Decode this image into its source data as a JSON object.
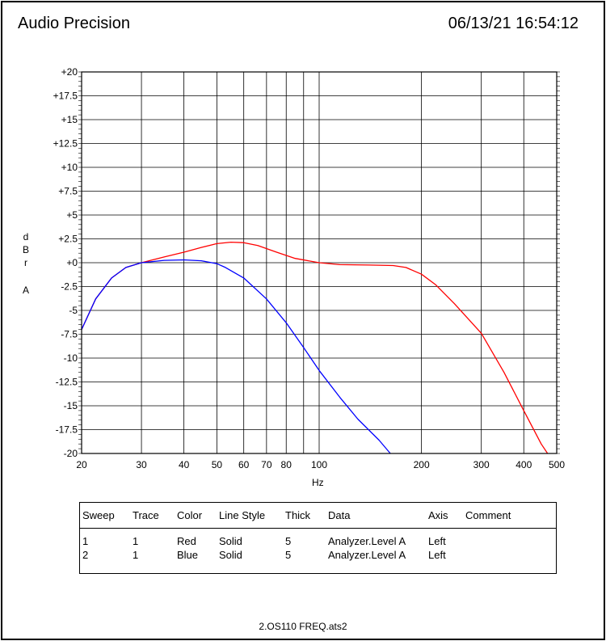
{
  "header": {
    "title": "Audio Precision",
    "datetime": "06/13/21 16:54:12"
  },
  "chart_data": {
    "type": "line",
    "x_scale": "log",
    "xlim": [
      20,
      500
    ],
    "ylim": [
      -20,
      20
    ],
    "xlabel": "Hz",
    "ylabel": [
      "d",
      "B",
      "r",
      "A"
    ],
    "grid": true,
    "x_ticks": [
      {
        "v": 20,
        "label": "20"
      },
      {
        "v": 30,
        "label": "30"
      },
      {
        "v": 40,
        "label": "40"
      },
      {
        "v": 50,
        "label": "50"
      },
      {
        "v": 60,
        "label": "60"
      },
      {
        "v": 70,
        "label": "70"
      },
      {
        "v": 80,
        "label": "80"
      },
      {
        "v": 100,
        "label": "100"
      },
      {
        "v": 200,
        "label": "200"
      },
      {
        "v": 300,
        "label": "300"
      },
      {
        "v": 400,
        "label": "400"
      },
      {
        "v": 500,
        "label": "500"
      }
    ],
    "y_ticks": [
      {
        "v": 20,
        "label": "+20"
      },
      {
        "v": 17.5,
        "label": "+17.5"
      },
      {
        "v": 15,
        "label": "+15"
      },
      {
        "v": 12.5,
        "label": "+12.5"
      },
      {
        "v": 10,
        "label": "+10"
      },
      {
        "v": 7.5,
        "label": "+7.5"
      },
      {
        "v": 5,
        "label": "+5"
      },
      {
        "v": 2.5,
        "label": "+2.5"
      },
      {
        "v": 0,
        "label": "+0"
      },
      {
        "v": -2.5,
        "label": "-2.5"
      },
      {
        "v": -5,
        "label": "-5"
      },
      {
        "v": -7.5,
        "label": "-7.5"
      },
      {
        "v": -10,
        "label": "-10"
      },
      {
        "v": -12.5,
        "label": "-12.5"
      },
      {
        "v": -15,
        "label": "-15"
      },
      {
        "v": -17.5,
        "label": "-17.5"
      },
      {
        "v": -20,
        "label": "-20"
      }
    ],
    "x_grid_minor": [
      90
    ],
    "series": [
      {
        "color": "#ff0000",
        "points": [
          [
            20,
            -7
          ],
          [
            22,
            -3.8
          ],
          [
            24.5,
            -1.6
          ],
          [
            27,
            -0.5
          ],
          [
            30,
            0
          ],
          [
            35,
            0.6
          ],
          [
            40,
            1.1
          ],
          [
            45,
            1.6
          ],
          [
            50,
            2.0
          ],
          [
            55,
            2.15
          ],
          [
            60,
            2.1
          ],
          [
            66,
            1.8
          ],
          [
            75,
            1.1
          ],
          [
            85,
            0.45
          ],
          [
            100,
            0
          ],
          [
            115,
            -0.2
          ],
          [
            140,
            -0.25
          ],
          [
            165,
            -0.3
          ],
          [
            180,
            -0.5
          ],
          [
            200,
            -1.2
          ],
          [
            220,
            -2.3
          ],
          [
            250,
            -4.3
          ],
          [
            300,
            -7.4
          ],
          [
            350,
            -11.5
          ],
          [
            400,
            -15.5
          ],
          [
            450,
            -19
          ],
          [
            470,
            -20
          ]
        ]
      },
      {
        "color": "#0000ff",
        "points": [
          [
            20,
            -7
          ],
          [
            22,
            -3.8
          ],
          [
            24.5,
            -1.6
          ],
          [
            27,
            -0.5
          ],
          [
            30,
            0
          ],
          [
            35,
            0.25
          ],
          [
            40,
            0.3
          ],
          [
            45,
            0.2
          ],
          [
            50,
            -0.1
          ],
          [
            53,
            -0.5
          ],
          [
            60,
            -1.6
          ],
          [
            70,
            -3.8
          ],
          [
            80,
            -6.3
          ],
          [
            90,
            -8.9
          ],
          [
            100,
            -11.3
          ],
          [
            115,
            -14.1
          ],
          [
            130,
            -16.4
          ],
          [
            150,
            -18.6
          ],
          [
            162,
            -20
          ]
        ]
      }
    ]
  },
  "legend": {
    "headers": [
      "Sweep",
      "Trace",
      "Color",
      "Line Style",
      "Thick",
      "Data",
      "Axis",
      "Comment"
    ],
    "rows": [
      [
        "1",
        "1",
        "Red",
        "Solid",
        "5",
        "Analyzer.Level A",
        "Left",
        ""
      ],
      [
        "2",
        "1",
        "Blue",
        "Solid",
        "5",
        "Analyzer.Level A",
        "Left",
        ""
      ]
    ]
  },
  "footer": {
    "filename": "2.OS110 FREQ.ats2"
  }
}
